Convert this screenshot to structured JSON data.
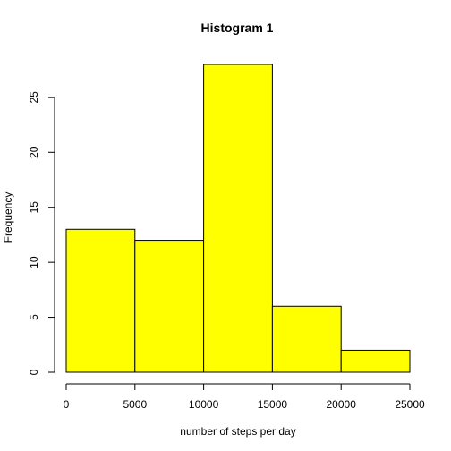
{
  "chart_data": {
    "type": "bar",
    "title": "Histogram 1",
    "xlabel": "number of steps per day",
    "ylabel": "Frequency",
    "bins": [
      {
        "from": 0,
        "to": 5000,
        "count": 13
      },
      {
        "from": 5000,
        "to": 10000,
        "count": 12
      },
      {
        "from": 10000,
        "to": 15000,
        "count": 28
      },
      {
        "from": 15000,
        "to": 20000,
        "count": 6
      },
      {
        "from": 20000,
        "to": 25000,
        "count": 2
      }
    ],
    "xlim": [
      0,
      25000
    ],
    "ylim": [
      0,
      28
    ],
    "x_ticks": [
      0,
      5000,
      10000,
      15000,
      20000,
      25000
    ],
    "y_ticks": [
      0,
      5,
      10,
      15,
      20,
      25
    ],
    "grid": false,
    "bar_color": "#FFFF00",
    "edge_color": "#000000"
  }
}
